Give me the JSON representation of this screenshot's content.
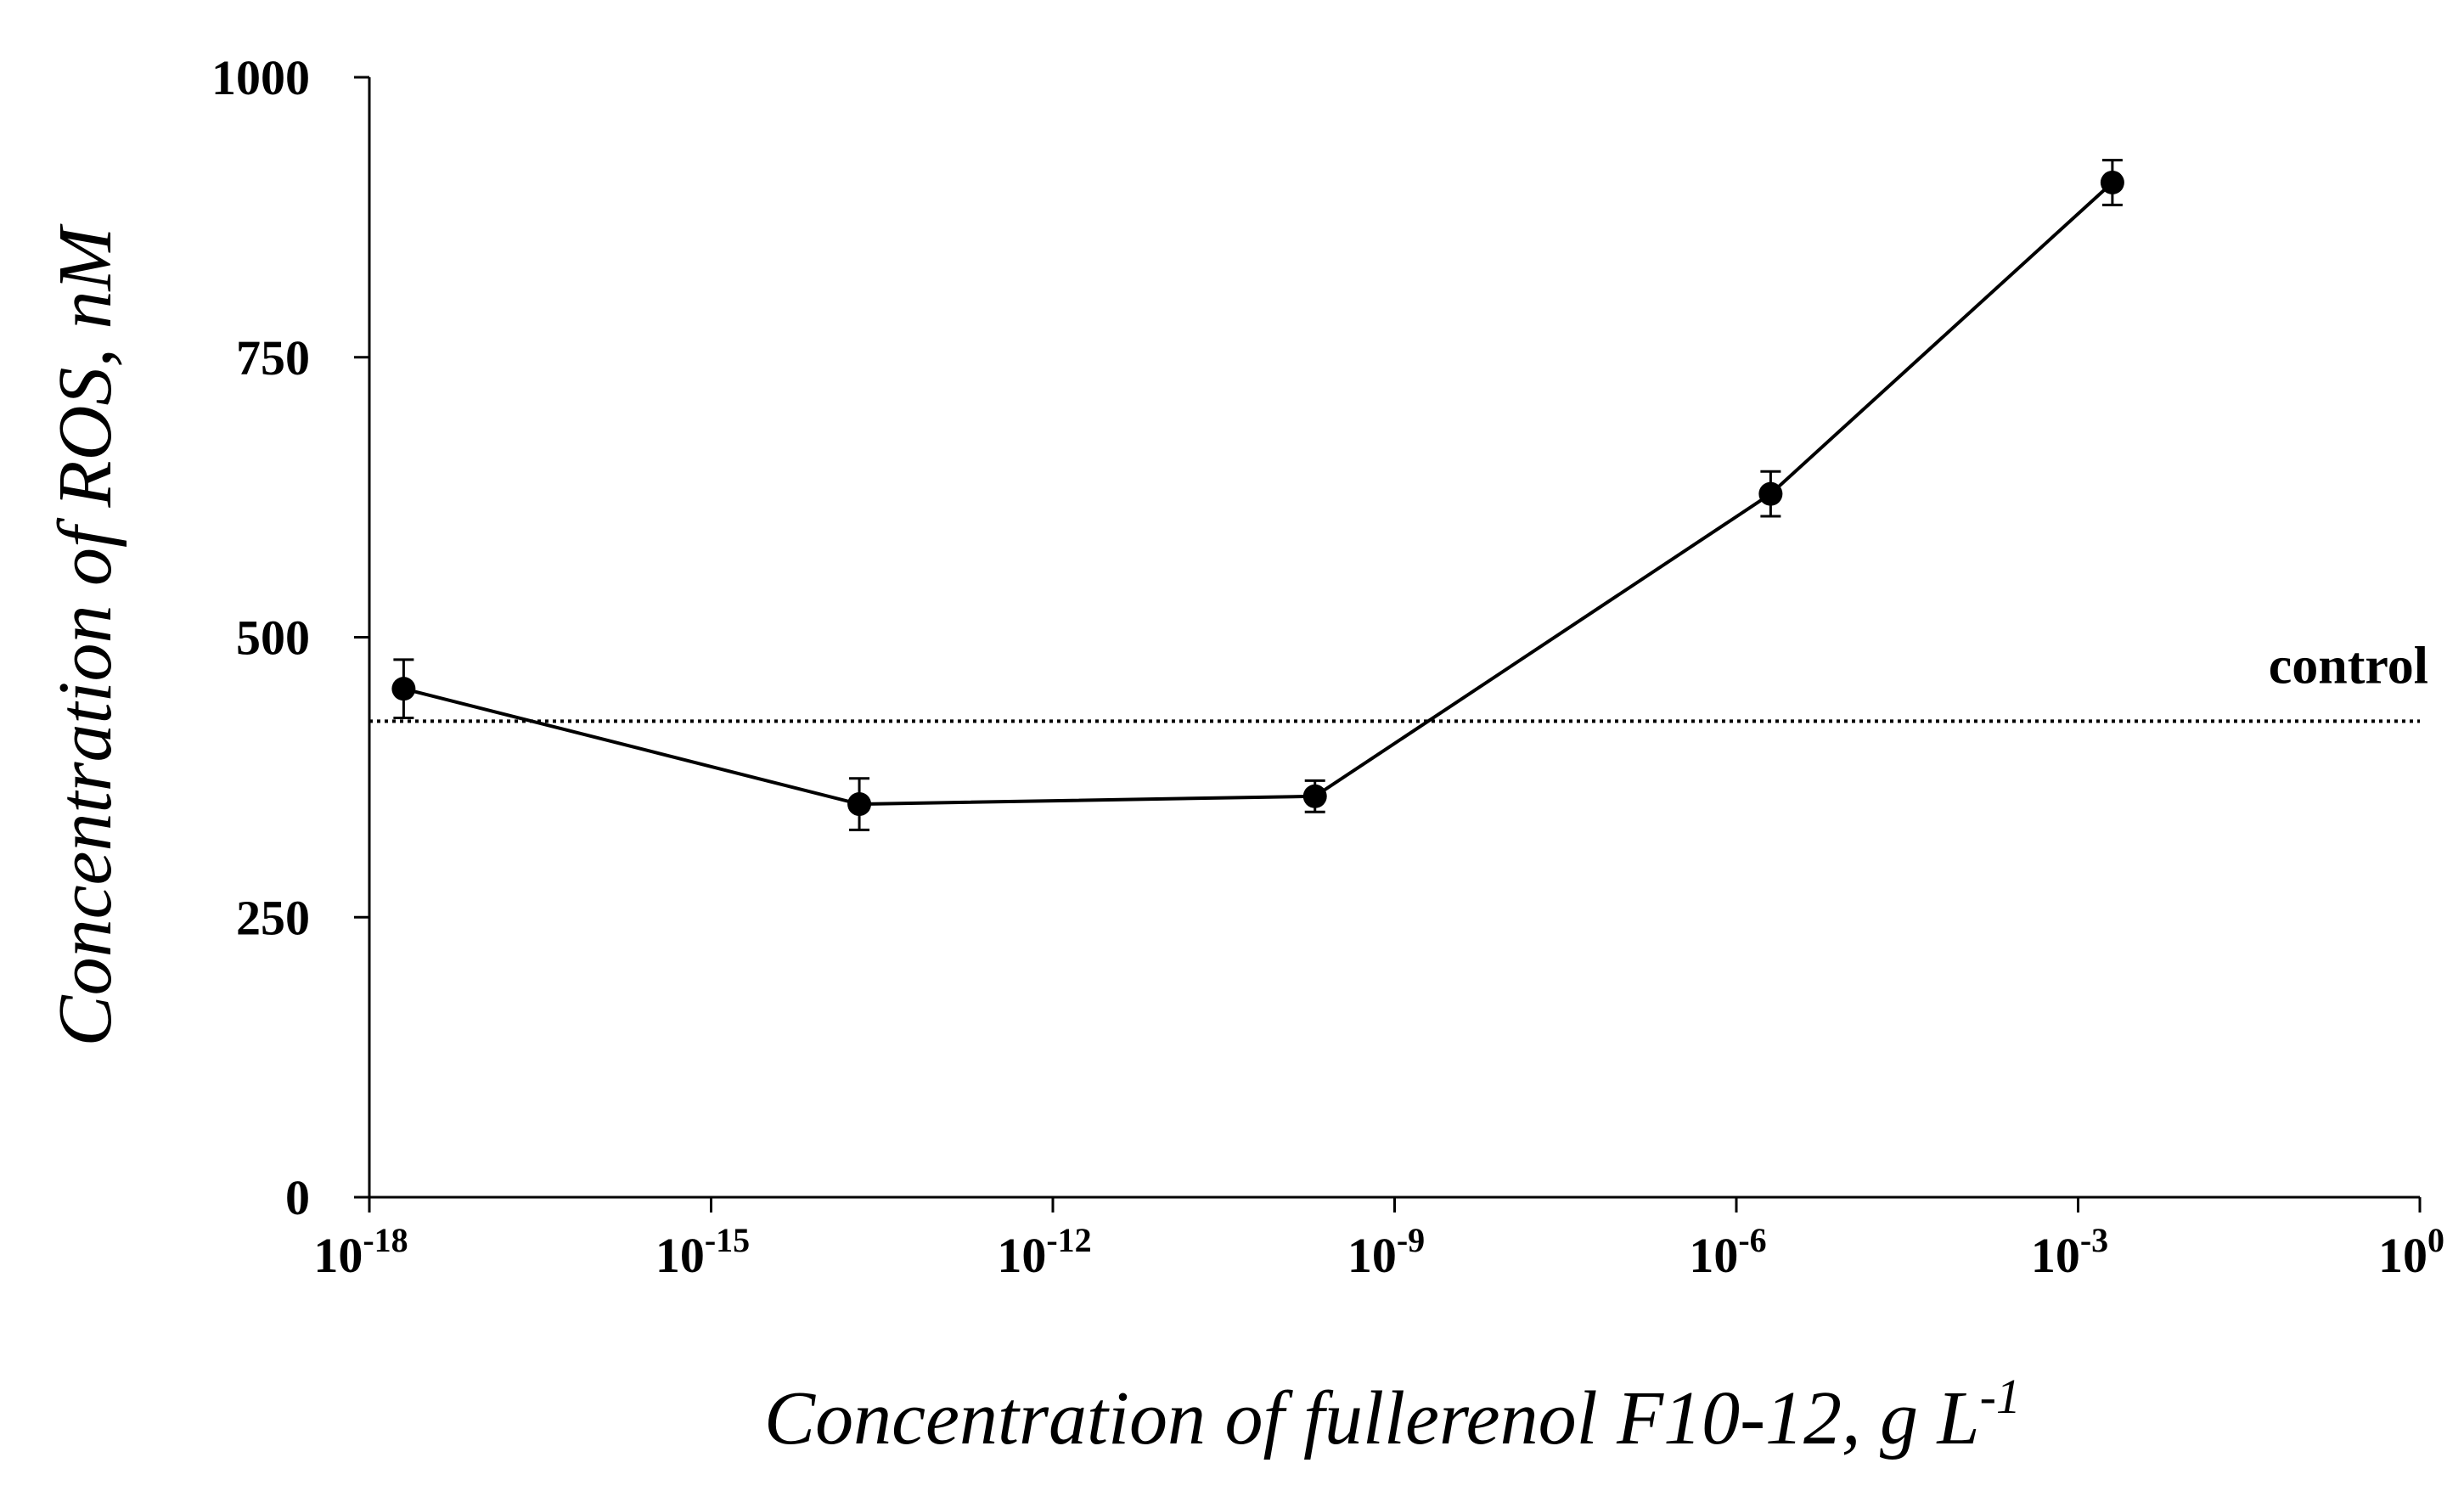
{
  "chart_data": {
    "type": "line",
    "xlabel": "Concentration of fullerenol F10-12, g L",
    "xlabel_superscript": "-1",
    "ylabel": "Concentration of ROS, nM",
    "xscale": "log",
    "xlim": [
      1e-18,
      1
    ],
    "xticks": [
      {
        "value": 1e-18,
        "label": "10",
        "exponent": "-18"
      },
      {
        "value": 1e-15,
        "label": "10",
        "exponent": "-15"
      },
      {
        "value": 1e-12,
        "label": "10",
        "exponent": "-12"
      },
      {
        "value": 1e-09,
        "label": "10",
        "exponent": "-9"
      },
      {
        "value": 1e-06,
        "label": "10",
        "exponent": "-6"
      },
      {
        "value": 0.001,
        "label": "10",
        "exponent": "-3"
      },
      {
        "value": 1,
        "label": "10",
        "exponent": "0"
      }
    ],
    "ylim": [
      0,
      1000
    ],
    "yticks": [
      0,
      250,
      500,
      750,
      1000
    ],
    "x": [
      2e-18,
      2e-14,
      2e-10,
      2e-06,
      0.002
    ],
    "series": [
      {
        "color": "#000000",
        "values": [
          454,
          351,
          358,
          628,
          906
        ],
        "errors": [
          26,
          23,
          14,
          20,
          20
        ]
      }
    ],
    "control": {
      "label": "control",
      "value": 425
    }
  }
}
